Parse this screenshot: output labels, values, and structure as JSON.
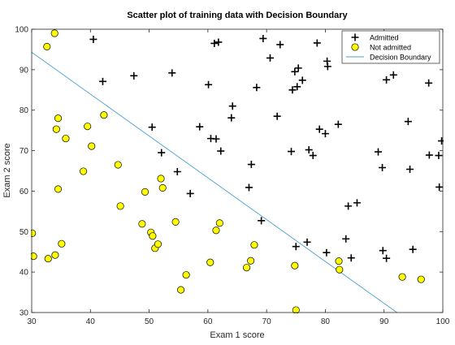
{
  "chart_data": {
    "type": "scatter",
    "title": "Scatter plot of training data with Decision Boundary",
    "xlabel": "Exam 1 score",
    "ylabel": "Exam 2 score",
    "xlim": [
      30,
      100
    ],
    "ylim": [
      30,
      100
    ],
    "xticks": [
      30,
      40,
      50,
      60,
      70,
      80,
      90,
      100
    ],
    "yticks": [
      30,
      40,
      50,
      60,
      70,
      80,
      90,
      100
    ],
    "grid": false,
    "legend_position": "top-right",
    "series": [
      {
        "name": "Admitted",
        "marker": "plus",
        "color": "#000000",
        "points": [
          [
            40.5,
            97.5
          ],
          [
            42.1,
            87.1
          ],
          [
            47.4,
            88.5
          ],
          [
            50.5,
            75.8
          ],
          [
            52.1,
            69.5
          ],
          [
            53.9,
            89.2
          ],
          [
            54.8,
            64.8
          ],
          [
            57.0,
            59.4
          ],
          [
            58.6,
            75.9
          ],
          [
            60.1,
            86.3
          ],
          [
            60.5,
            73.0
          ],
          [
            61.1,
            96.5
          ],
          [
            61.4,
            72.9
          ],
          [
            61.8,
            96.8
          ],
          [
            62.2,
            69.9
          ],
          [
            64.0,
            78.1
          ],
          [
            64.2,
            81.0
          ],
          [
            67.0,
            60.9
          ],
          [
            67.4,
            66.6
          ],
          [
            68.3,
            85.6
          ],
          [
            69.1,
            52.7
          ],
          [
            69.4,
            97.7
          ],
          [
            70.6,
            92.9
          ],
          [
            71.8,
            78.5
          ],
          [
            72.3,
            96.2
          ],
          [
            74.2,
            69.8
          ],
          [
            74.4,
            85.0
          ],
          [
            74.8,
            89.5
          ],
          [
            75.0,
            46.3
          ],
          [
            75.2,
            85.8
          ],
          [
            75.4,
            90.4
          ],
          [
            76.1,
            87.4
          ],
          [
            76.9,
            47.4
          ],
          [
            77.2,
            70.2
          ],
          [
            77.9,
            68.8
          ],
          [
            78.6,
            96.6
          ],
          [
            79.0,
            75.3
          ],
          [
            80.0,
            74.2
          ],
          [
            80.2,
            44.8
          ],
          [
            80.3,
            92.1
          ],
          [
            80.4,
            90.8
          ],
          [
            82.2,
            76.5
          ],
          [
            83.5,
            48.2
          ],
          [
            83.9,
            56.3
          ],
          [
            84.4,
            43.5
          ],
          [
            85.4,
            57.1
          ],
          [
            89.0,
            69.7
          ],
          [
            89.7,
            65.8
          ],
          [
            89.8,
            45.3
          ],
          [
            90.4,
            87.5
          ],
          [
            90.4,
            43.4
          ],
          [
            91.6,
            88.7
          ],
          [
            94.1,
            77.2
          ],
          [
            94.4,
            65.4
          ],
          [
            94.9,
            45.6
          ],
          [
            97.6,
            86.7
          ],
          [
            97.7,
            68.9
          ],
          [
            99.3,
            68.8
          ],
          [
            99.4,
            61.0
          ],
          [
            99.8,
            72.4
          ]
        ]
      },
      {
        "name": "Not admitted",
        "marker": "circle",
        "color": "#ffff00",
        "points": [
          [
            30.1,
            49.6
          ],
          [
            30.3,
            43.9
          ],
          [
            32.6,
            95.7
          ],
          [
            32.8,
            43.3
          ],
          [
            33.9,
            99.0
          ],
          [
            34.0,
            44.2
          ],
          [
            34.2,
            75.3
          ],
          [
            34.5,
            78.0
          ],
          [
            34.5,
            60.5
          ],
          [
            35.1,
            47.0
          ],
          [
            35.8,
            73.0
          ],
          [
            38.8,
            64.9
          ],
          [
            39.5,
            76.0
          ],
          [
            40.2,
            71.1
          ],
          [
            42.3,
            78.8
          ],
          [
            44.7,
            66.5
          ],
          [
            45.1,
            56.3
          ],
          [
            48.8,
            51.9
          ],
          [
            49.3,
            59.8
          ],
          [
            50.3,
            49.8
          ],
          [
            50.6,
            48.9
          ],
          [
            51.0,
            45.9
          ],
          [
            51.5,
            46.9
          ],
          [
            52.0,
            63.1
          ],
          [
            52.3,
            60.8
          ],
          [
            54.5,
            52.4
          ],
          [
            55.4,
            35.6
          ],
          [
            56.3,
            39.3
          ],
          [
            60.4,
            42.4
          ],
          [
            61.4,
            50.3
          ],
          [
            62.0,
            52.1
          ],
          [
            66.6,
            41.1
          ],
          [
            67.3,
            42.8
          ],
          [
            67.9,
            46.7
          ],
          [
            74.8,
            41.6
          ],
          [
            75.0,
            30.6
          ],
          [
            82.3,
            42.7
          ],
          [
            82.4,
            40.6
          ],
          [
            93.1,
            38.8
          ],
          [
            96.3,
            38.2
          ]
        ]
      },
      {
        "name": "Decision Boundary",
        "marker": "line",
        "color": "#4d9fd0",
        "points": [
          [
            30,
            94.3
          ],
          [
            92.2,
            30
          ]
        ]
      }
    ]
  }
}
